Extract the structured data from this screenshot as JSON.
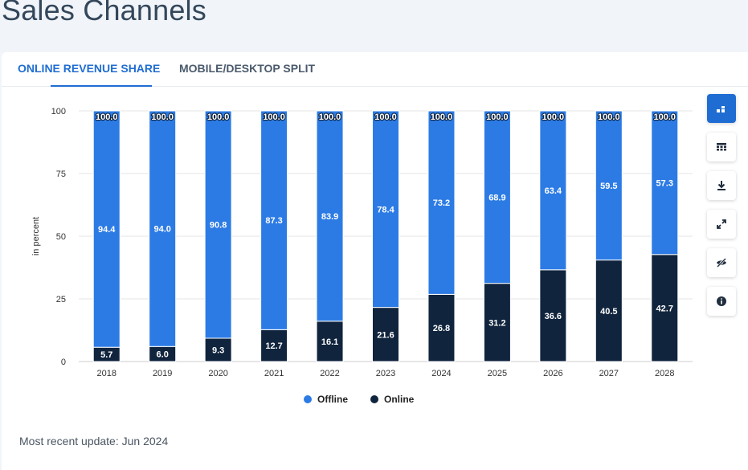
{
  "page": {
    "title": "Sales Channels",
    "update_text": "Most recent update: Jun 2024"
  },
  "tabs": [
    {
      "label": "ONLINE REVENUE SHARE",
      "active": true
    },
    {
      "label": "MOBILE/DESKTOP SPLIT",
      "active": false
    }
  ],
  "toolbar": {
    "items": [
      {
        "icon": "chart-type-icon",
        "active": true
      },
      {
        "icon": "table-view-icon",
        "active": false
      },
      {
        "icon": "download-icon",
        "active": false
      },
      {
        "icon": "fullscreen-icon",
        "active": false
      },
      {
        "icon": "hide-icon",
        "active": false
      },
      {
        "icon": "info-icon",
        "active": false
      }
    ]
  },
  "colors": {
    "offline": "#2c7be5",
    "online": "#10243d",
    "accent": "#1f6dd3"
  },
  "chart_data": {
    "type": "bar",
    "stacked": true,
    "categories": [
      "2018",
      "2019",
      "2020",
      "2021",
      "2022",
      "2023",
      "2024",
      "2025",
      "2026",
      "2027",
      "2028"
    ],
    "series": [
      {
        "name": "Online",
        "values": [
          5.7,
          6.0,
          9.3,
          12.7,
          16.1,
          21.6,
          26.8,
          31.2,
          36.6,
          40.5,
          42.7
        ]
      },
      {
        "name": "Offline",
        "values": [
          94.4,
          94.0,
          90.8,
          87.3,
          83.9,
          78.4,
          73.2,
          68.9,
          63.4,
          59.5,
          57.3
        ]
      }
    ],
    "totals": [
      "100.0",
      "100.0",
      "100.0",
      "100.0",
      "100.0",
      "100.0",
      "100.0",
      "100.0",
      "100.0",
      "100.0",
      "100.0"
    ],
    "online_labels": [
      "5.7",
      "6.0",
      "9.3",
      "12.7",
      "16.1",
      "21.6",
      "26.8",
      "31.2",
      "36.6",
      "40.5",
      "42.7"
    ],
    "offline_labels": [
      "94.4",
      "94.0",
      "90.8",
      "87.3",
      "83.9",
      "78.4",
      "73.2",
      "68.9",
      "63.4",
      "59.5",
      "57.3"
    ],
    "ylabel": "in percent",
    "xlabel": "",
    "ylim": [
      0,
      100
    ],
    "yticks": [
      "0",
      "25",
      "50",
      "75",
      "100"
    ],
    "legend": [
      {
        "name": "Offline"
      },
      {
        "name": "Online"
      }
    ],
    "legend_position": "bottom"
  }
}
